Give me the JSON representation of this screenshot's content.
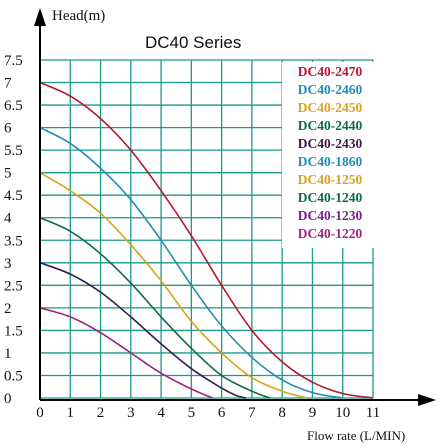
{
  "chart_data": {
    "type": "line",
    "title": "DC40 Series",
    "ylabel": "Head(m)",
    "xlabel": "Flow rate (L/MIN)",
    "xlim": [
      0,
      11
    ],
    "ylim": [
      0,
      7.5
    ],
    "x_ticks": [
      "0",
      "1",
      "2",
      "3",
      "4",
      "5",
      "6",
      "7",
      "8",
      "9",
      "10",
      "11"
    ],
    "y_ticks": [
      "0",
      "0.5",
      "1",
      "1.5",
      "2",
      "2.5",
      "3",
      "3.5",
      "4",
      "4.5",
      "5",
      "5.5",
      "6",
      "6.5",
      "7",
      "7.5"
    ],
    "grid": true,
    "grid_color": "#1a9a8a",
    "legend_position": "top-right",
    "series": [
      {
        "name": "DC40-2470",
        "color": "#b5172e",
        "points": [
          [
            0,
            7.0
          ],
          [
            1,
            6.7
          ],
          [
            2,
            6.2
          ],
          [
            3,
            5.5
          ],
          [
            4,
            4.6
          ],
          [
            5,
            3.6
          ],
          [
            6,
            2.5
          ],
          [
            7,
            1.5
          ],
          [
            8,
            0.8
          ],
          [
            9,
            0.35
          ],
          [
            10,
            0.1
          ],
          [
            11,
            0.0
          ]
        ]
      },
      {
        "name": "DC40-2460",
        "color": "#1f8fb8",
        "points": [
          [
            0,
            6.0
          ],
          [
            1,
            5.65
          ],
          [
            2,
            5.1
          ],
          [
            3,
            4.4
          ],
          [
            4,
            3.5
          ],
          [
            5,
            2.5
          ],
          [
            6,
            1.6
          ],
          [
            7,
            0.9
          ],
          [
            8,
            0.4
          ],
          [
            9,
            0.12
          ],
          [
            10,
            0.0
          ]
        ]
      },
      {
        "name": "DC40-2450",
        "color": "#d9a21a",
        "points": [
          [
            0,
            5.0
          ],
          [
            1,
            4.6
          ],
          [
            2,
            4.1
          ],
          [
            3,
            3.4
          ],
          [
            4,
            2.6
          ],
          [
            5,
            1.7
          ],
          [
            6,
            1.0
          ],
          [
            7,
            0.45
          ],
          [
            8,
            0.15
          ],
          [
            8.8,
            0.0
          ]
        ]
      },
      {
        "name": "DC40-2440",
        "color": "#0d6b4a",
        "points": [
          [
            0,
            4.0
          ],
          [
            1,
            3.7
          ],
          [
            2,
            3.2
          ],
          [
            3,
            2.55
          ],
          [
            4,
            1.8
          ],
          [
            5,
            1.1
          ],
          [
            6,
            0.5
          ],
          [
            7,
            0.15
          ],
          [
            7.6,
            0.0
          ]
        ]
      },
      {
        "name": "DC40-2430",
        "color": "#3b1a4a",
        "points": [
          [
            0,
            3.0
          ],
          [
            1,
            2.75
          ],
          [
            2,
            2.35
          ],
          [
            3,
            1.8
          ],
          [
            4,
            1.2
          ],
          [
            5,
            0.65
          ],
          [
            6,
            0.22
          ],
          [
            6.5,
            0.05
          ],
          [
            6.8,
            0.0
          ]
        ]
      },
      {
        "name": "DC40-1860",
        "color": "#1f8fb8",
        "points": []
      },
      {
        "name": "DC40-1250",
        "color": "#d9a21a",
        "points": []
      },
      {
        "name": "DC40-1240",
        "color": "#0d6b4a",
        "points": []
      },
      {
        "name": "DC40-1230",
        "color": "#7a1f8a",
        "points": []
      },
      {
        "name": "DC40-1220",
        "color": "#a0237a",
        "points": [
          [
            0,
            2.0
          ],
          [
            1,
            1.8
          ],
          [
            2,
            1.45
          ],
          [
            3,
            1.0
          ],
          [
            4,
            0.55
          ],
          [
            5,
            0.2
          ],
          [
            5.7,
            0.0
          ]
        ]
      }
    ]
  }
}
